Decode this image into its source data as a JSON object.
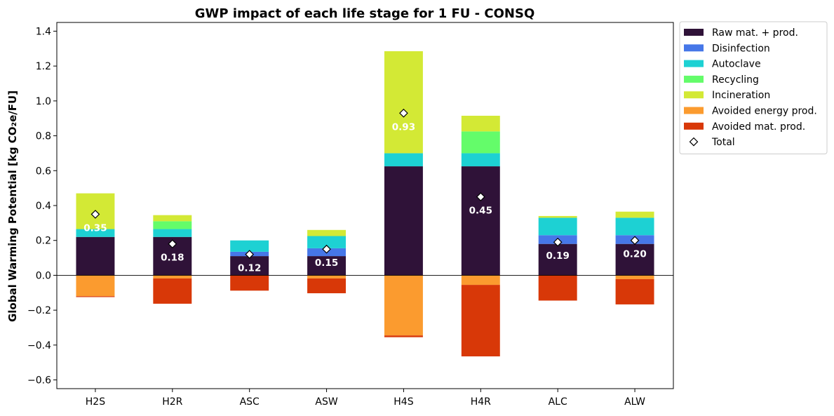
{
  "chart_data": {
    "type": "bar",
    "stacked": true,
    "title": "GWP impact of each life stage for 1 FU - CONSQ",
    "xlabel": "",
    "ylabel": "Global Warming Potential [kg CO₂e/FU]",
    "ylim": [
      -0.65,
      1.45
    ],
    "yticks": [
      -0.6,
      -0.4,
      -0.2,
      0.0,
      0.2,
      0.4,
      0.6,
      0.8,
      1.0,
      1.2,
      1.4
    ],
    "ytick_labels": [
      "−0.6",
      "−0.4",
      "−0.2",
      "0.0",
      "0.2",
      "0.4",
      "0.6",
      "0.8",
      "1.0",
      "1.2",
      "1.4"
    ],
    "grid": false,
    "legend_position": "outside-top-right",
    "categories": [
      "H2S",
      "H2R",
      "ASC",
      "ASW",
      "H4S",
      "H4R",
      "ALC",
      "ALW"
    ],
    "series": [
      {
        "name": "Raw mat. + prod.",
        "color": "#2f1238",
        "values": [
          0.22,
          0.22,
          0.11,
          0.11,
          0.625,
          0.625,
          0.18,
          0.18
        ]
      },
      {
        "name": "Disinfection",
        "color": "#4677e8",
        "values": [
          0.0,
          0.0,
          0.025,
          0.045,
          0.0,
          0.0,
          0.05,
          0.05
        ]
      },
      {
        "name": "Autoclave",
        "color": "#1dd1d3",
        "values": [
          0.045,
          0.045,
          0.065,
          0.07,
          0.075,
          0.075,
          0.1,
          0.1
        ]
      },
      {
        "name": "Recycling",
        "color": "#64fc6a",
        "values": [
          0.0,
          0.045,
          0.0,
          0.0,
          0.0,
          0.125,
          0.0,
          0.0
        ]
      },
      {
        "name": "Incineration",
        "color": "#d3e935",
        "values": [
          0.205,
          0.035,
          0.0,
          0.035,
          0.585,
          0.09,
          0.01,
          0.035
        ]
      },
      {
        "name": "Avoided energy prod.",
        "color": "#fb9b2f",
        "values": [
          -0.12,
          -0.018,
          0.0,
          -0.018,
          -0.345,
          -0.055,
          0.0,
          -0.022
        ]
      },
      {
        "name": "Avoided mat. prod.",
        "color": "#d83808",
        "values": [
          -0.005,
          -0.145,
          -0.088,
          -0.085,
          -0.01,
          -0.41,
          -0.145,
          -0.145
        ]
      }
    ],
    "total": {
      "name": "Total",
      "values": [
        0.35,
        0.18,
        0.12,
        0.15,
        0.93,
        0.45,
        0.19,
        0.2
      ],
      "labels": [
        "0.35",
        "0.18",
        "0.12",
        "0.15",
        "0.93",
        "0.45",
        "0.19",
        "0.20"
      ]
    }
  }
}
